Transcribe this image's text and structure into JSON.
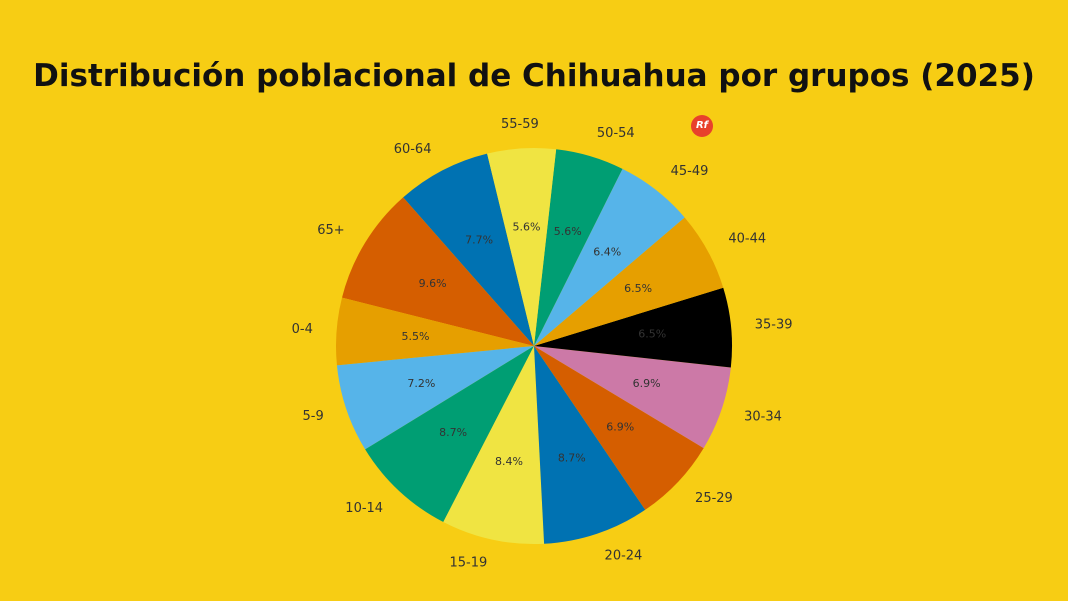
{
  "chart_data": {
    "type": "pie",
    "title": "Distribución poblacional de Chihuahua por grupos (2025)",
    "start_angle_deg": 103.7,
    "direction": "counterclockwise",
    "slices": [
      {
        "label": "60-64",
        "value": 7.7,
        "pct_label": "7.7%",
        "color": "#0072b2"
      },
      {
        "label": "65+",
        "value": 9.6,
        "pct_label": "9.6%",
        "color": "#d55e00"
      },
      {
        "label": "0-4",
        "value": 5.5,
        "pct_label": "5.5%",
        "color": "#e69f00"
      },
      {
        "label": "5-9",
        "value": 7.2,
        "pct_label": "7.2%",
        "color": "#56b4e9"
      },
      {
        "label": "10-14",
        "value": 8.7,
        "pct_label": "8.7%",
        "color": "#009e73"
      },
      {
        "label": "15-19",
        "value": 8.4,
        "pct_label": "8.4%",
        "color": "#f0e442"
      },
      {
        "label": "20-24",
        "value": 8.7,
        "pct_label": "8.7%",
        "color": "#0072b2"
      },
      {
        "label": "25-29",
        "value": 6.9,
        "pct_label": "6.9%",
        "color": "#d55e00"
      },
      {
        "label": "30-34",
        "value": 6.9,
        "pct_label": "6.9%",
        "color": "#cc79a7"
      },
      {
        "label": "35-39",
        "value": 6.5,
        "pct_label": "6.5%",
        "color": "#000000"
      },
      {
        "label": "40-44",
        "value": 6.5,
        "pct_label": "6.5%",
        "color": "#e69f00"
      },
      {
        "label": "45-49",
        "value": 6.4,
        "pct_label": "6.4%",
        "color": "#56b4e9"
      },
      {
        "label": "50-54",
        "value": 5.6,
        "pct_label": "5.6%",
        "color": "#009e73"
      },
      {
        "label": "55-59",
        "value": 5.6,
        "pct_label": "5.6%",
        "color": "#f0e442"
      }
    ]
  },
  "logo_text": "Rf",
  "colors": {
    "background": "#f7cd14",
    "logo": "#e8412c"
  }
}
